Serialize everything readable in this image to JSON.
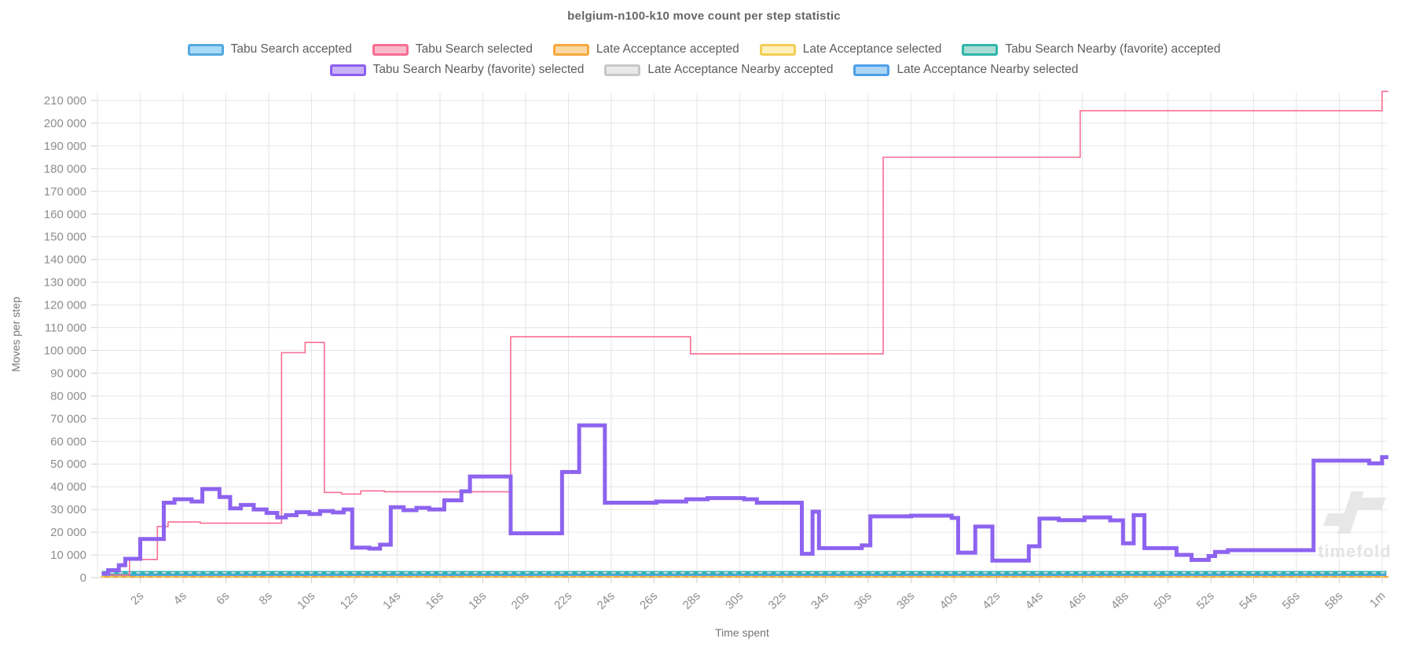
{
  "title": "belgium-n100-k10 move count per step statistic",
  "legend": {
    "rows": [
      [
        {
          "label": "Tabu Search accepted",
          "fill": "#a9daf7",
          "border": "#54a9e0"
        },
        {
          "label": "Tabu Search selected",
          "fill": "#f9bac9",
          "border": "#f76e92"
        },
        {
          "label": "Late Acceptance accepted",
          "fill": "#fbd8a3",
          "border": "#f6a83d"
        },
        {
          "label": "Late Acceptance selected",
          "fill": "#fdf0bd",
          "border": "#f3cd55"
        },
        {
          "label": "Tabu Search Nearby (favorite) accepted",
          "fill": "#a9dcd4",
          "border": "#2fb5a9"
        }
      ],
      [
        {
          "label": "Tabu Search Nearby (favorite) selected",
          "fill": "#c9b2f5",
          "border": "#8b5ff0"
        },
        {
          "label": "Late Acceptance Nearby accepted",
          "fill": "#e9e9e9",
          "border": "#c7c7c7"
        },
        {
          "label": "Late Acceptance Nearby selected",
          "fill": "#abd4f5",
          "border": "#4da0e8"
        }
      ]
    ]
  },
  "watermark": {
    "text": "timefold"
  },
  "chart_data": {
    "type": "line",
    "line_mode": "step-after",
    "title": "belgium-n100-k10 move count per step statistic",
    "xlabel": "Time spent",
    "ylabel": "Moves per step",
    "xlim": [
      0,
      60.5
    ],
    "ylim": [
      0,
      215000
    ],
    "grid": true,
    "legend_position": "top",
    "x_ticks": [
      {
        "t": 2,
        "label": "2s"
      },
      {
        "t": 4,
        "label": "4s"
      },
      {
        "t": 6,
        "label": "6s"
      },
      {
        "t": 8,
        "label": "8s"
      },
      {
        "t": 10,
        "label": "10s"
      },
      {
        "t": 12,
        "label": "12s"
      },
      {
        "t": 14,
        "label": "14s"
      },
      {
        "t": 16,
        "label": "16s"
      },
      {
        "t": 18,
        "label": "18s"
      },
      {
        "t": 20,
        "label": "20s"
      },
      {
        "t": 22,
        "label": "22s"
      },
      {
        "t": 24,
        "label": "24s"
      },
      {
        "t": 26,
        "label": "26s"
      },
      {
        "t": 28,
        "label": "28s"
      },
      {
        "t": 30,
        "label": "30s"
      },
      {
        "t": 32,
        "label": "32s"
      },
      {
        "t": 34,
        "label": "34s"
      },
      {
        "t": 36,
        "label": "36s"
      },
      {
        "t": 38,
        "label": "38s"
      },
      {
        "t": 40,
        "label": "40s"
      },
      {
        "t": 42,
        "label": "42s"
      },
      {
        "t": 44,
        "label": "44s"
      },
      {
        "t": 46,
        "label": "46s"
      },
      {
        "t": 48,
        "label": "48s"
      },
      {
        "t": 50,
        "label": "50s"
      },
      {
        "t": 52,
        "label": "52s"
      },
      {
        "t": 54,
        "label": "54s"
      },
      {
        "t": 56,
        "label": "56s"
      },
      {
        "t": 58,
        "label": "58s"
      },
      {
        "t": 60,
        "label": "1m"
      }
    ],
    "y_ticks": [
      {
        "v": 0,
        "label": "0"
      },
      {
        "v": 10000,
        "label": "10 000"
      },
      {
        "v": 20000,
        "label": "20 000"
      },
      {
        "v": 30000,
        "label": "30 000"
      },
      {
        "v": 40000,
        "label": "40 000"
      },
      {
        "v": 50000,
        "label": "50 000"
      },
      {
        "v": 60000,
        "label": "60 000"
      },
      {
        "v": 70000,
        "label": "70 000"
      },
      {
        "v": 80000,
        "label": "80 000"
      },
      {
        "v": 90000,
        "label": "90 000"
      },
      {
        "v": 100000,
        "label": "100 000"
      },
      {
        "v": 110000,
        "label": "110 000"
      },
      {
        "v": 120000,
        "label": "120 000"
      },
      {
        "v": 130000,
        "label": "130 000"
      },
      {
        "v": 140000,
        "label": "140 000"
      },
      {
        "v": 150000,
        "label": "150 000"
      },
      {
        "v": 160000,
        "label": "160 000"
      },
      {
        "v": 170000,
        "label": "170 000"
      },
      {
        "v": 180000,
        "label": "180 000"
      },
      {
        "v": 190000,
        "label": "190 000"
      },
      {
        "v": 200000,
        "label": "200 000"
      },
      {
        "v": 210000,
        "label": "210 000"
      }
    ],
    "series": [
      {
        "name": "Tabu Search accepted",
        "key": "tabu-search-accepted",
        "color": "#62b3e6",
        "width": 3,
        "dash": null,
        "points": [
          [
            0.25,
            950
          ],
          [
            60.2,
            950
          ]
        ]
      },
      {
        "name": "Late Acceptance Nearby selected",
        "key": "late-acceptance-nearby-selected",
        "color": "#4da0e8",
        "width": 3.5,
        "dash": null,
        "points": [
          [
            0.2,
            1400
          ],
          [
            60.2,
            1400
          ]
        ]
      },
      {
        "name": "Tabu Search Nearby (favorite) accepted",
        "key": "tabu-search-nearby-accepted",
        "color": "#2eb4bb",
        "width": 4.5,
        "dash": null,
        "points": [
          [
            0.2,
            2150
          ],
          [
            60.2,
            2150
          ]
        ]
      },
      {
        "name": "Late Acceptance Nearby accepted",
        "key": "late-acceptance-nearby-accepted",
        "color": "#dcdcdc",
        "width": 2,
        "dash": [
          5,
          6
        ],
        "points": [
          [
            0.2,
            2150
          ],
          [
            60.2,
            2150
          ]
        ]
      },
      {
        "name": "Late Acceptance accepted",
        "key": "late-acceptance-accepted",
        "color": "#f6a83d",
        "width": 2.2,
        "dash": null,
        "points": [
          [
            0.15,
            350
          ],
          [
            60.3,
            350
          ]
        ]
      },
      {
        "name": "Late Acceptance selected",
        "key": "late-acceptance-selected",
        "color": "#f3cd55",
        "width": 2,
        "dash": [
          5,
          6
        ],
        "points": [
          [
            0.15,
            350
          ],
          [
            60.3,
            350
          ]
        ]
      },
      {
        "name": "Tabu Search selected",
        "key": "tabu-search-selected",
        "color": "#f76e92",
        "width": 1.6,
        "dash": null,
        "points": [
          [
            0.3,
            1200
          ],
          [
            1.5,
            8000
          ],
          [
            2.8,
            22500
          ],
          [
            3.3,
            24500
          ],
          [
            4.8,
            24000
          ],
          [
            8.6,
            99000
          ],
          [
            9.7,
            103500
          ],
          [
            10.6,
            37500
          ],
          [
            11.4,
            36800
          ],
          [
            12.3,
            38200
          ],
          [
            13.4,
            37800
          ],
          [
            19.3,
            106000
          ],
          [
            27.7,
            98500
          ],
          [
            36.7,
            185000
          ],
          [
            45.9,
            205500
          ],
          [
            60.0,
            214000
          ],
          [
            60.3,
            214000
          ]
        ]
      },
      {
        "name": "Tabu Search Nearby (favorite) selected",
        "key": "tabu-search-nearby-selected",
        "color": "#8d63f0",
        "width": 5,
        "dash": null,
        "points": [
          [
            0.2,
            1800
          ],
          [
            0.5,
            3300
          ],
          [
            1.0,
            5500
          ],
          [
            1.3,
            8300
          ],
          [
            2.0,
            17000
          ],
          [
            3.1,
            33000
          ],
          [
            3.6,
            34500
          ],
          [
            4.4,
            33500
          ],
          [
            4.9,
            39000
          ],
          [
            5.7,
            35500
          ],
          [
            6.2,
            30500
          ],
          [
            6.7,
            32000
          ],
          [
            7.3,
            30000
          ],
          [
            7.9,
            28500
          ],
          [
            8.4,
            26500
          ],
          [
            8.8,
            27500
          ],
          [
            9.3,
            28800
          ],
          [
            9.9,
            28000
          ],
          [
            10.4,
            29300
          ],
          [
            11.0,
            28700
          ],
          [
            11.5,
            30000
          ],
          [
            11.9,
            13200
          ],
          [
            12.7,
            12800
          ],
          [
            13.2,
            14500
          ],
          [
            13.7,
            31000
          ],
          [
            14.3,
            29700
          ],
          [
            14.9,
            30700
          ],
          [
            15.5,
            30000
          ],
          [
            16.2,
            34000
          ],
          [
            17.0,
            38000
          ],
          [
            17.4,
            44500
          ],
          [
            19.3,
            19500
          ],
          [
            21.7,
            46500
          ],
          [
            22.5,
            67000
          ],
          [
            23.7,
            33000
          ],
          [
            26.1,
            33500
          ],
          [
            27.5,
            34500
          ],
          [
            28.5,
            35000
          ],
          [
            30.2,
            34500
          ],
          [
            30.8,
            33000
          ],
          [
            32.9,
            10500
          ],
          [
            33.4,
            29000
          ],
          [
            33.7,
            13000
          ],
          [
            35.7,
            14200
          ],
          [
            36.1,
            27000
          ],
          [
            38.0,
            27300
          ],
          [
            39.9,
            26300
          ],
          [
            40.2,
            11000
          ],
          [
            41.0,
            22500
          ],
          [
            41.8,
            7500
          ],
          [
            43.5,
            13800
          ],
          [
            44.0,
            26000
          ],
          [
            44.9,
            25300
          ],
          [
            46.1,
            26500
          ],
          [
            47.3,
            25200
          ],
          [
            47.9,
            15100
          ],
          [
            48.4,
            27500
          ],
          [
            48.9,
            13000
          ],
          [
            50.4,
            10000
          ],
          [
            51.1,
            7800
          ],
          [
            51.9,
            9500
          ],
          [
            52.2,
            11300
          ],
          [
            52.8,
            12100
          ],
          [
            56.8,
            51500
          ],
          [
            59.4,
            50300
          ],
          [
            60.0,
            53000
          ],
          [
            60.3,
            53000
          ]
        ]
      }
    ]
  }
}
